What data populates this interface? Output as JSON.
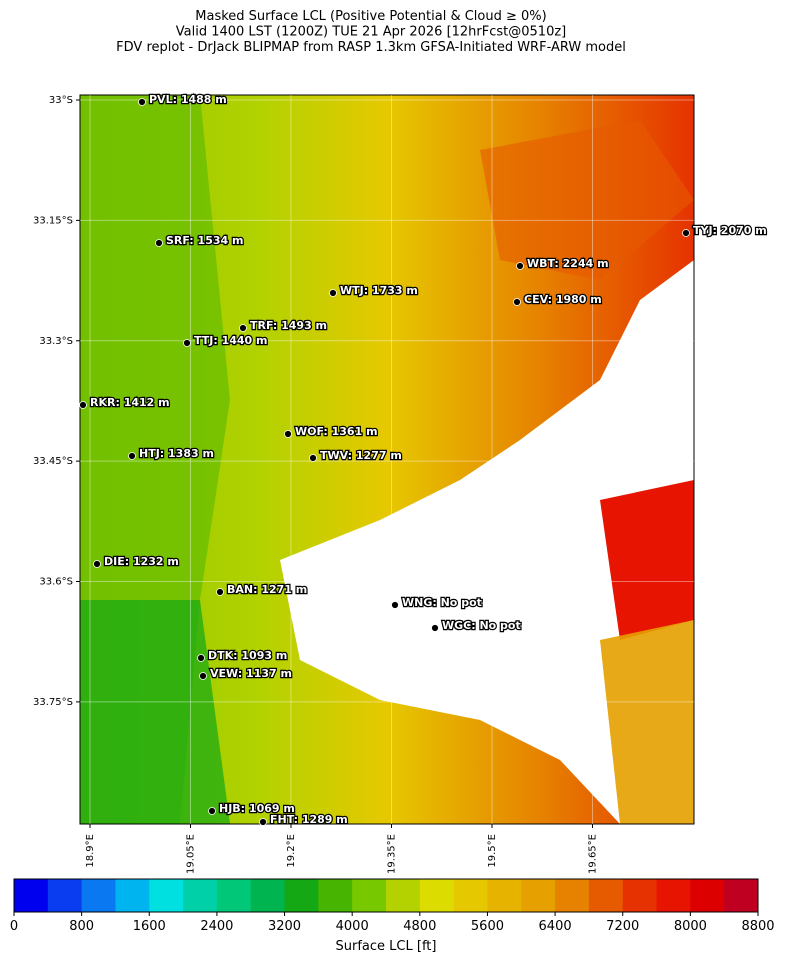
{
  "header": {
    "title_lines": [
      "Masked Surface LCL (Positive Potential & Cloud ≥ 0%)",
      "Valid 1400 LST (1200Z) TUE 21 Apr 2026 [12hrFcst@0510z]",
      "FDV replot - DrJack BLIPMAP from RASP 1.3km GFSA-Initiated WRF-ARW model"
    ]
  },
  "map": {
    "lat_ticks": [
      {
        "value": -33,
        "label": "33°S"
      },
      {
        "value": -33.15,
        "label": "33.15°S"
      },
      {
        "value": -33.3,
        "label": "33.3°S"
      },
      {
        "value": -33.45,
        "label": "33.45°S"
      },
      {
        "value": -33.6,
        "label": "33.6°S"
      },
      {
        "value": -33.75,
        "label": "33.75°S"
      }
    ],
    "lon_ticks": [
      {
        "value": 18.9,
        "label": "18.9°E"
      },
      {
        "value": 19.05,
        "label": "19.05°E"
      },
      {
        "value": 19.2,
        "label": "19.2°E"
      },
      {
        "value": 19.35,
        "label": "19.35°E"
      },
      {
        "value": 19.5,
        "label": "19.5°E"
      },
      {
        "value": 19.65,
        "label": "19.65°E"
      }
    ],
    "stations": [
      "PVL: 1488 m",
      "SRF: 1534 m",
      "TYJ: 2070 m",
      "WBT: 2244 m",
      "WTJ: 1733 m",
      "CEV: 1980 m",
      "TRF: 1493 m",
      "TTJ: 1440 m",
      "RKR: 1412 m",
      "WOF: 1361 m",
      "HTJ: 1383 m",
      "TWV: 1277 m",
      "DIE: 1232 m",
      "BAN: 1271 m",
      "WNG: No pot",
      "WGC: No pot",
      "DTK: 1093 m",
      "VEW: 1137 m",
      "HJB: 1069 m",
      "FHT: 1289 m"
    ]
  },
  "colorbar": {
    "label": "Surface LCL [ft]",
    "range": [
      0,
      8800
    ],
    "ticks": [
      0,
      800,
      1600,
      2400,
      3200,
      4000,
      4800,
      5600,
      6400,
      7200,
      8000,
      8800
    ],
    "colors": [
      "#0000ef",
      "#0a3cf0",
      "#0a78f0",
      "#00b4f0",
      "#00e0e0",
      "#00d0a8",
      "#00c878",
      "#00b450",
      "#14a814",
      "#46b400",
      "#78c800",
      "#b4d200",
      "#dcdc00",
      "#e6c800",
      "#e6b400",
      "#e6a000",
      "#e68200",
      "#e65a00",
      "#e63200",
      "#e61400",
      "#dc0000",
      "#c00020"
    ]
  }
}
